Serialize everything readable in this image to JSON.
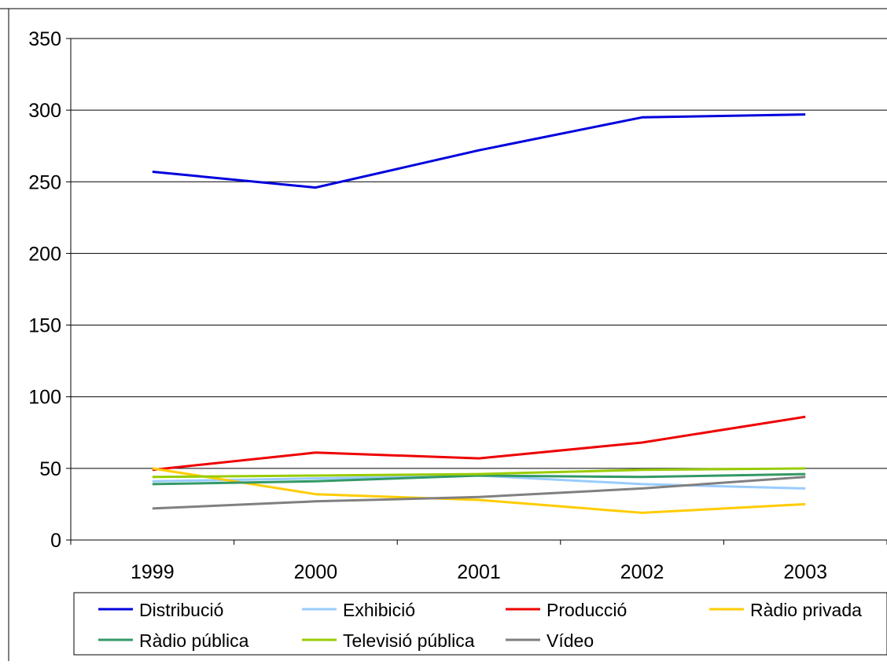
{
  "chart_data": {
    "type": "line",
    "title": "",
    "xlabel": "",
    "ylabel": "",
    "categories": [
      "1999",
      "2000",
      "2001",
      "2002",
      "2003"
    ],
    "ylim": [
      0,
      350
    ],
    "yticks": [
      "0",
      "50",
      "100",
      "150",
      "200",
      "250",
      "300",
      "350"
    ],
    "ytick_values": [
      0,
      50,
      100,
      150,
      200,
      250,
      300,
      350
    ],
    "grid": "horizontal",
    "legend_position": "bottom",
    "series": [
      {
        "name": "Distribució",
        "color": "#0000dd",
        "values": [
          257,
          246,
          272,
          295,
          297
        ]
      },
      {
        "name": "Exhibició",
        "color": "#99ccff",
        "values": [
          41,
          43,
          45,
          39,
          36
        ]
      },
      {
        "name": "Producció",
        "color": "#ee0000",
        "values": [
          49,
          61,
          57,
          68,
          86
        ]
      },
      {
        "name": "Ràdio privada",
        "color": "#ffcc00",
        "values": [
          50,
          32,
          28,
          19,
          25
        ]
      },
      {
        "name": "Ràdio pública",
        "color": "#339966",
        "values": [
          39,
          41,
          45,
          44,
          46
        ]
      },
      {
        "name": "Televisió pública",
        "color": "#99cc00",
        "values": [
          44,
          45,
          46,
          49,
          50
        ]
      },
      {
        "name": "Vídeo",
        "color": "#808080",
        "values": [
          22,
          27,
          30,
          36,
          44
        ]
      }
    ]
  }
}
